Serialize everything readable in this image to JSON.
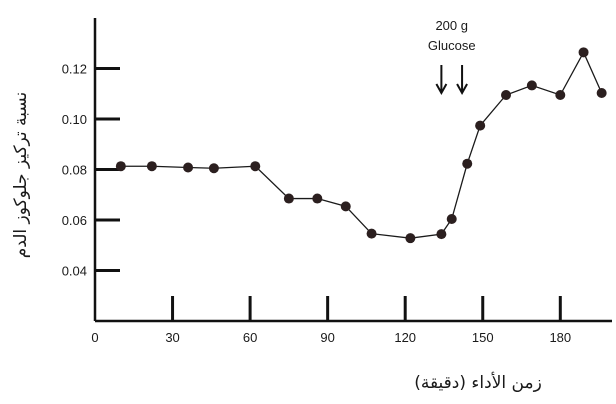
{
  "chart_data": {
    "type": "line",
    "title": "",
    "xlabel": "زمن الأداء (دقيقة)",
    "ylabel": "نسبة تركيز جلوكوز الدم",
    "xlim": [
      0,
      200
    ],
    "ylim": [
      0.02,
      0.14
    ],
    "x_ticks": [
      "0",
      "30",
      "60",
      "90",
      "120",
      "150",
      "180"
    ],
    "y_ticks": [
      "0.04",
      "0.06",
      "0.08",
      "0.10",
      "0.12"
    ],
    "grid": false,
    "series": [
      {
        "x": [
          10,
          22,
          36,
          46,
          62,
          75,
          86,
          97,
          107,
          122,
          134,
          138,
          144,
          149,
          159,
          169,
          180,
          189,
          196
        ],
        "y": [
          0.0813,
          0.0813,
          0.0808,
          0.0805,
          0.0813,
          0.0685,
          0.0685,
          0.0654,
          0.0546,
          0.0528,
          0.0544,
          0.0604,
          0.0823,
          0.0974,
          0.1095,
          0.1133,
          0.1095,
          0.1264,
          0.1103
        ]
      }
    ],
    "annotation": {
      "text_line1": "200 g",
      "text_line2": "Glucose",
      "arrow_x": [
        134,
        142
      ]
    }
  }
}
